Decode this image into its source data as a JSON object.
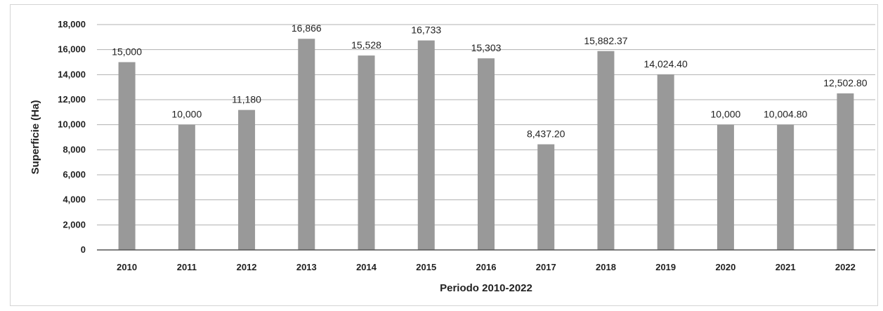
{
  "chart_data": {
    "type": "bar",
    "categories": [
      "2010",
      "2011",
      "2012",
      "2013",
      "2014",
      "2015",
      "2016",
      "2017",
      "2018",
      "2019",
      "2020",
      "2021",
      "2022"
    ],
    "values": [
      15000,
      10000,
      11180,
      16866,
      15528,
      16733,
      15303,
      8437.2,
      15882.37,
      14024.4,
      10000,
      10004.8,
      12502.8
    ],
    "data_labels": [
      "15,000",
      "10,000",
      "11,180",
      "16,866",
      "15,528",
      "16,733",
      "15,303",
      "8,437.20",
      "15,882.37",
      "14,024.40",
      "10,000",
      "10,004.80",
      "12,502.80"
    ],
    "title": "",
    "xlabel": "Periodo 2010-2022",
    "ylabel": "Superficie (Ha)",
    "ylim": [
      0,
      18000
    ],
    "yticks": [
      0,
      2000,
      4000,
      6000,
      8000,
      10000,
      12000,
      14000,
      16000,
      18000
    ],
    "ytick_labels": [
      "0",
      "2,000",
      "4,000",
      "6,000",
      "8,000",
      "10,000",
      "12,000",
      "14,000",
      "16,000",
      "18,000"
    ],
    "grid": true,
    "legend": "none",
    "bar_color": "#999999",
    "grid_color": "#b0b0b0"
  }
}
